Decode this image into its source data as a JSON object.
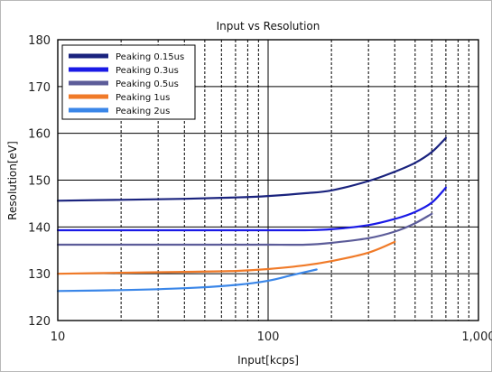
{
  "chart_data": {
    "type": "line",
    "title": "Input vs Resolution",
    "xlabel": "Input[kcps]",
    "ylabel": "Resolution[eV]",
    "xscale": "log",
    "xlim": [
      10,
      1000
    ],
    "ylim": [
      120,
      180
    ],
    "yticks": [
      120,
      130,
      140,
      150,
      160,
      170,
      180
    ],
    "xticks": [
      10,
      100,
      1000
    ],
    "xtick_labels": [
      "10",
      "100",
      "1,000"
    ],
    "grid": true,
    "legend_position": "top-left",
    "series": [
      {
        "name": "Peaking 0.15us",
        "color": "#1a237e",
        "x": [
          10,
          20,
          40,
          70,
          100,
          150,
          200,
          300,
          400,
          500,
          600,
          700
        ],
        "y": [
          145.6,
          145.8,
          146.0,
          146.3,
          146.6,
          147.2,
          147.8,
          149.8,
          151.8,
          153.7,
          156.0,
          159.0
        ]
      },
      {
        "name": "Peaking 0.3us",
        "color": "#1a1ae6",
        "x": [
          10,
          20,
          40,
          70,
          100,
          150,
          200,
          300,
          400,
          500,
          600,
          700
        ],
        "y": [
          139.3,
          139.3,
          139.3,
          139.3,
          139.3,
          139.3,
          139.5,
          140.4,
          141.7,
          143.2,
          145.2,
          148.4
        ]
      },
      {
        "name": "Peaking 0.5us",
        "color": "#5c5c99",
        "x": [
          10,
          20,
          40,
          70,
          100,
          150,
          200,
          300,
          400,
          500,
          600
        ],
        "y": [
          136.2,
          136.2,
          136.2,
          136.2,
          136.2,
          136.2,
          136.6,
          137.6,
          139.0,
          140.8,
          142.8
        ]
      },
      {
        "name": "Peaking 1us",
        "color": "#f07a28",
        "x": [
          10,
          20,
          40,
          70,
          100,
          150,
          200,
          300,
          400
        ],
        "y": [
          130.0,
          130.2,
          130.4,
          130.6,
          131.0,
          131.8,
          132.7,
          134.5,
          136.8
        ]
      },
      {
        "name": "Peaking 2us",
        "color": "#3a86e8",
        "x": [
          10,
          20,
          40,
          70,
          100,
          130,
          170
        ],
        "y": [
          126.3,
          126.5,
          126.9,
          127.6,
          128.5,
          129.7,
          130.9
        ]
      }
    ]
  }
}
